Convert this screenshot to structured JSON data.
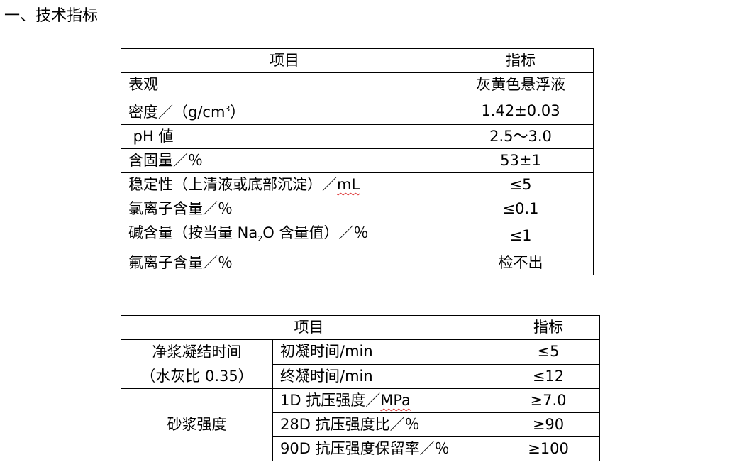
{
  "heading": "一、技术指标",
  "table1": {
    "header": [
      "项目",
      "指标"
    ],
    "rows": [
      {
        "item": "表观",
        "value": "灰黄色悬浮液"
      },
      {
        "item_pre": "密度／（g/cm",
        "item_sup": "3",
        "item_post": "）",
        "value": "1.42±0.03"
      },
      {
        "item": " pH 値",
        "value": "2.5～3.0"
      },
      {
        "item": "含固量／％",
        "value": "53±1"
      },
      {
        "item_pre": "稳定性（上清液或底部沉淀）／",
        "item_unit": "mL",
        "value": "≤5"
      },
      {
        "item": "氯离子含量／％",
        "value": "≤0.1"
      },
      {
        "item_pre": "碱含量（按当量 Na",
        "item_sub": "2",
        "item_post": "O 含量值）／％",
        "value": "≤1"
      },
      {
        "item": "氟离子含量／％",
        "value": "检不出"
      }
    ]
  },
  "table2": {
    "header": [
      "项目",
      "指标"
    ],
    "group1": {
      "label_line1": "净浆凝结时间",
      "label_line2": "（水灰比 0.35）",
      "rows": [
        {
          "item": "初凝时间/min",
          "value": "≤5"
        },
        {
          "item": "终凝时间/min",
          "value": "≤12"
        }
      ]
    },
    "group2": {
      "label": "砂浆强度",
      "rows": [
        {
          "item_pre": "1D 抗压强度／",
          "item_unit": "MPa",
          "value": "≥7.0"
        },
        {
          "item": "28D 抗压强度比／％",
          "value": "≥90"
        },
        {
          "item": "90D 抗压强度保留率／％",
          "value": "≥100"
        }
      ]
    }
  }
}
